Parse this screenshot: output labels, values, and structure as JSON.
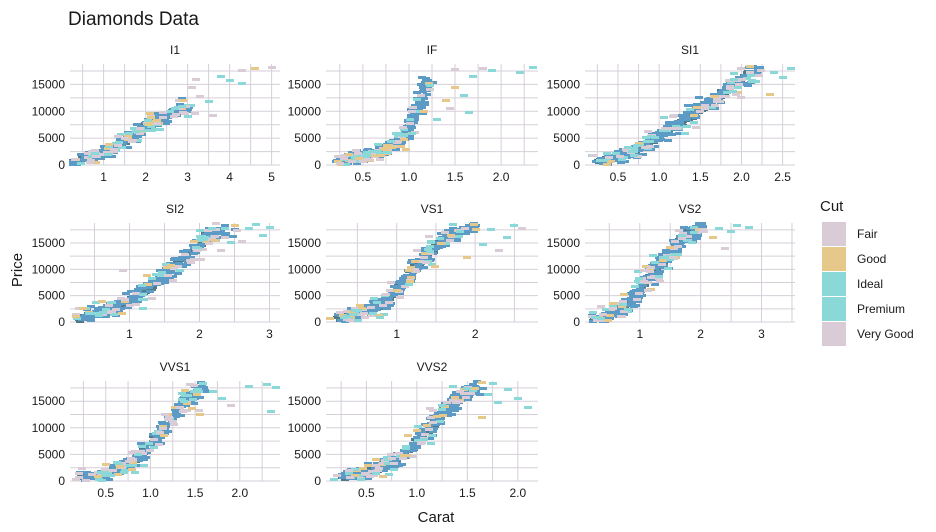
{
  "chart_data": {
    "type": "heatmap",
    "title": "Diamonds Data",
    "xlabel": "Carat",
    "ylabel": "Price",
    "grid": true,
    "legend": {
      "title": "Cut",
      "position": "right",
      "entries": [
        {
          "name": "Fair",
          "color": "#d9ccd6"
        },
        {
          "name": "Good",
          "color": "#e6c88b"
        },
        {
          "name": "Ideal",
          "color": "#8ad8d8"
        },
        {
          "name": "Premium",
          "color": "#8ad8d8"
        },
        {
          "name": "Very Good",
          "color": "#d9ccd6"
        }
      ]
    },
    "overlap_color": "#5b9bc5",
    "dense_color": "#4f7a86",
    "panels": [
      {
        "label": "I1",
        "xlim": [
          0.2,
          5.2
        ],
        "ylim": [
          0,
          18800
        ],
        "xticks": [
          1,
          2,
          3,
          4,
          5
        ],
        "xtick_labels": [
          "1",
          "2",
          "3",
          "4",
          "5"
        ],
        "yticks": [
          0,
          5000,
          10000,
          15000
        ],
        "ytick_labels": [
          "0",
          "5000",
          "10000",
          "15000"
        ],
        "ridge": [
          [
            0.3,
            500
          ],
          [
            1.0,
            2300
          ],
          [
            1.5,
            4200
          ],
          [
            2.0,
            7200
          ],
          [
            2.6,
            9500
          ],
          [
            3.0,
            11000
          ]
        ],
        "spread_carat": 0.22,
        "spread_price": 1000,
        "dense_max_carat": 2.1,
        "scatter": [
          [
            3.1,
            14500,
            0
          ],
          [
            3.3,
            12800,
            0
          ],
          [
            3.5,
            11800,
            2
          ],
          [
            3.0,
            9000,
            3
          ],
          [
            3.6,
            9300,
            0
          ],
          [
            4.0,
            15700,
            2
          ],
          [
            4.3,
            17600,
            0
          ],
          [
            4.6,
            18000,
            1
          ],
          [
            5.0,
            18100,
            0
          ],
          [
            2.7,
            10500,
            3
          ],
          [
            3.8,
            16500,
            3
          ],
          [
            2.9,
            12000,
            1
          ],
          [
            4.3,
            15200,
            3
          ],
          [
            3.2,
            16000,
            0
          ]
        ]
      },
      {
        "label": "IF",
        "xlim": [
          0.1,
          2.4
        ],
        "ylim": [
          0,
          18800
        ],
        "xticks": [
          0.5,
          1.0,
          1.5,
          2.0
        ],
        "xtick_labels": [
          "0.5",
          "1.0",
          "1.5",
          "2.0"
        ],
        "yticks": [
          0,
          5000,
          10000,
          15000
        ],
        "ytick_labels": [
          "0",
          "5000",
          "10000",
          "15000"
        ],
        "ridge": [
          [
            0.25,
            800
          ],
          [
            0.5,
            1800
          ],
          [
            0.8,
            3200
          ],
          [
            1.0,
            6500
          ],
          [
            1.1,
            11000
          ],
          [
            1.2,
            16000
          ]
        ],
        "spread_carat": 0.09,
        "spread_price": 900,
        "dense_max_carat": 0.9,
        "scatter": [
          [
            1.5,
            14500,
            1
          ],
          [
            1.6,
            13000,
            2
          ],
          [
            1.7,
            16500,
            3
          ],
          [
            1.9,
            17500,
            2
          ],
          [
            2.2,
            17200,
            3
          ],
          [
            2.35,
            18200,
            2
          ],
          [
            1.5,
            17800,
            0
          ],
          [
            1.4,
            12000,
            1
          ],
          [
            1.65,
            9800,
            2
          ],
          [
            1.3,
            8500,
            3
          ],
          [
            1.8,
            18000,
            4
          ],
          [
            1.45,
            10500,
            4
          ]
        ]
      },
      {
        "label": "SI1",
        "xlim": [
          0.1,
          2.65
        ],
        "ylim": [
          0,
          18800
        ],
        "xticks": [
          0.5,
          1.0,
          1.5,
          2.0,
          2.5
        ],
        "xtick_labels": [
          "0.5",
          "1.0",
          "1.5",
          "2.0",
          "2.5"
        ],
        "yticks": [
          0,
          5000,
          10000,
          15000
        ],
        "ytick_labels": [
          "0",
          "5000",
          "10000",
          "15000"
        ],
        "ridge": [
          [
            0.25,
            500
          ],
          [
            0.7,
            2600
          ],
          [
            1.0,
            5200
          ],
          [
            1.3,
            8200
          ],
          [
            1.6,
            11500
          ],
          [
            1.9,
            14800
          ],
          [
            2.2,
            17800
          ]
        ],
        "spread_carat": 0.12,
        "spread_price": 1300,
        "dense_max_carat": 2.15,
        "scatter": [
          [
            2.4,
            17200,
            3
          ],
          [
            2.5,
            16200,
            2
          ],
          [
            2.6,
            18000,
            3
          ],
          [
            2.1,
            18400,
            1
          ],
          [
            0.2,
            1800,
            0
          ],
          [
            2.35,
            13200,
            1
          ],
          [
            2.0,
            12500,
            4
          ]
        ]
      },
      {
        "label": "SI2",
        "xlim": [
          0.15,
          3.15
        ],
        "ylim": [
          0,
          18800
        ],
        "xticks": [
          1,
          2,
          3
        ],
        "xtick_labels": [
          "1",
          "2",
          "3"
        ],
        "yticks": [
          0,
          5000,
          10000,
          15000
        ],
        "ytick_labels": [
          "0",
          "5000",
          "10000",
          "15000"
        ],
        "ridge": [
          [
            0.3,
            500
          ],
          [
            0.8,
            2600
          ],
          [
            1.2,
            5500
          ],
          [
            1.5,
            8800
          ],
          [
            1.8,
            12200
          ],
          [
            2.1,
            16000
          ],
          [
            2.4,
            18300
          ]
        ],
        "spread_carat": 0.15,
        "spread_price": 1400,
        "dense_max_carat": 2.2,
        "scatter": [
          [
            2.7,
            17800,
            3
          ],
          [
            2.9,
            16500,
            2
          ],
          [
            3.0,
            18000,
            3
          ],
          [
            2.5,
            18400,
            1
          ],
          [
            2.6,
            15200,
            0
          ],
          [
            0.6,
            3800,
            1
          ],
          [
            0.9,
            9800,
            0
          ],
          [
            2.3,
            13500,
            0
          ],
          [
            2.8,
            18500,
            2
          ]
        ]
      },
      {
        "label": "VS1",
        "xlim": [
          0.1,
          2.8
        ],
        "ylim": [
          0,
          18800
        ],
        "xticks": [
          1,
          2
        ],
        "xtick_labels": [
          "1",
          "2"
        ],
        "yticks": [
          0,
          5000,
          10000,
          15000
        ],
        "ytick_labels": [
          "0",
          "5000",
          "10000",
          "15000"
        ],
        "ridge": [
          [
            0.25,
            600
          ],
          [
            0.6,
            1800
          ],
          [
            0.9,
            4200
          ],
          [
            1.1,
            7800
          ],
          [
            1.3,
            11500
          ],
          [
            1.6,
            15800
          ],
          [
            2.0,
            18200
          ]
        ],
        "spread_carat": 0.11,
        "spread_price": 1300,
        "dense_max_carat": 1.55,
        "scatter": [
          [
            2.2,
            17500,
            3
          ],
          [
            2.4,
            16000,
            2
          ],
          [
            2.5,
            18300,
            3
          ],
          [
            2.3,
            13500,
            0
          ],
          [
            2.1,
            14800,
            2
          ],
          [
            1.9,
            12200,
            1
          ],
          [
            2.6,
            17800,
            4
          ]
        ]
      },
      {
        "label": "VS2",
        "xlim": [
          0.1,
          3.55
        ],
        "ylim": [
          0,
          18800
        ],
        "xticks": [
          1,
          2,
          3
        ],
        "xtick_labels": [
          "1",
          "2",
          "3"
        ],
        "yticks": [
          0,
          5000,
          10000,
          15000
        ],
        "ytick_labels": [
          "0",
          "5000",
          "10000",
          "15000"
        ],
        "ridge": [
          [
            0.25,
            500
          ],
          [
            0.6,
            1800
          ],
          [
            0.9,
            4200
          ],
          [
            1.1,
            7800
          ],
          [
            1.4,
            11800
          ],
          [
            1.7,
            15800
          ],
          [
            2.0,
            18200
          ]
        ],
        "spread_carat": 0.12,
        "spread_price": 1400,
        "dense_max_carat": 2.05,
        "scatter": [
          [
            2.3,
            17800,
            2
          ],
          [
            2.5,
            17200,
            3
          ],
          [
            2.6,
            18300,
            2
          ],
          [
            2.8,
            18000,
            3
          ],
          [
            2.2,
            16000,
            1
          ],
          [
            2.4,
            14000,
            0
          ]
        ]
      },
      {
        "label": "VVS1",
        "xlim": [
          0.1,
          2.45
        ],
        "ylim": [
          0,
          18800
        ],
        "xticks": [
          0.5,
          1.0,
          1.5,
          2.0
        ],
        "xtick_labels": [
          "0.5",
          "1.0",
          "1.5",
          "2.0"
        ],
        "yticks": [
          0,
          5000,
          10000,
          15000
        ],
        "ytick_labels": [
          "0",
          "5000",
          "10000",
          "15000"
        ],
        "ridge": [
          [
            0.25,
            700
          ],
          [
            0.5,
            1600
          ],
          [
            0.8,
            3400
          ],
          [
            1.0,
            6800
          ],
          [
            1.2,
            11200
          ],
          [
            1.4,
            15200
          ],
          [
            1.6,
            17800
          ]
        ],
        "spread_carat": 0.1,
        "spread_price": 1200,
        "dense_max_carat": 1.1,
        "scatter": [
          [
            1.7,
            16800,
            2
          ],
          [
            1.8,
            15500,
            3
          ],
          [
            2.1,
            17800,
            2
          ],
          [
            2.3,
            18200,
            3
          ],
          [
            2.4,
            17500,
            2
          ],
          [
            2.35,
            13000,
            3
          ],
          [
            1.55,
            12500,
            1
          ],
          [
            1.9,
            14200,
            4
          ]
        ]
      },
      {
        "label": "VVS2",
        "xlim": [
          0.1,
          2.2
        ],
        "ylim": [
          0,
          18800
        ],
        "xticks": [
          0.5,
          1.0,
          1.5,
          2.0
        ],
        "xtick_labels": [
          "0.5",
          "1.0",
          "1.5",
          "2.0"
        ],
        "yticks": [
          0,
          5000,
          10000,
          15000
        ],
        "ytick_labels": [
          "0",
          "5000",
          "10000",
          "15000"
        ],
        "ridge": [
          [
            0.25,
            700
          ],
          [
            0.5,
            1700
          ],
          [
            0.8,
            3800
          ],
          [
            1.0,
            7200
          ],
          [
            1.2,
            11500
          ],
          [
            1.4,
            15500
          ],
          [
            1.6,
            17800
          ]
        ],
        "spread_carat": 0.1,
        "spread_price": 1300,
        "dense_max_carat": 1.2,
        "scatter": [
          [
            1.7,
            16200,
            2
          ],
          [
            1.8,
            14800,
            3
          ],
          [
            1.9,
            17200,
            2
          ],
          [
            2.0,
            15500,
            3
          ],
          [
            2.1,
            13800,
            2
          ],
          [
            1.75,
            18300,
            3
          ],
          [
            1.65,
            12000,
            1
          ]
        ]
      }
    ]
  }
}
